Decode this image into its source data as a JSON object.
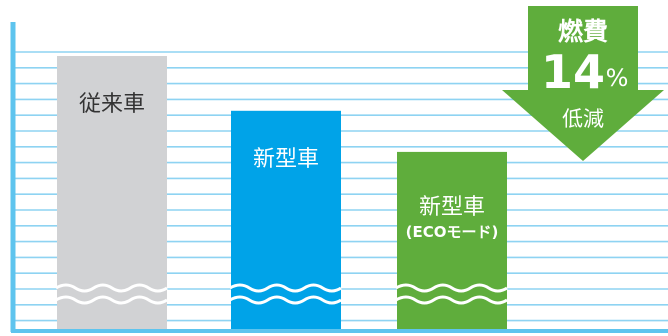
{
  "chart_data": {
    "type": "bar",
    "categories": [
      "従来車",
      "新型車",
      "新型車"
    ],
    "category_notes": [
      "",
      "",
      "(ECOモード)"
    ],
    "values": [
      100,
      92,
      86
    ],
    "axis_break": true,
    "grid": true,
    "colors": [
      "#d1d2d4",
      "#00a3e8",
      "#5fad3c"
    ],
    "grid_color": "#8ed3f2",
    "axis_color": "#5ec4ee"
  },
  "callout": {
    "line1": "燃費",
    "number": "14",
    "unit": "%",
    "line2": "低減",
    "color": "#5fad3c"
  }
}
